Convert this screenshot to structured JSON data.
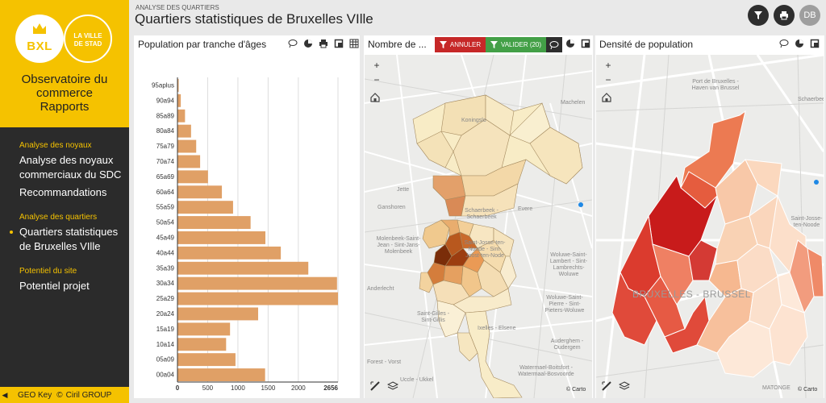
{
  "sidebar": {
    "logo_text": "BXL",
    "logo2_lines": [
      "LA VILLE",
      "DE STAD"
    ],
    "title_lines": [
      "Observatoire du",
      "commerce",
      "Rapports"
    ],
    "sections": [
      {
        "heading": "Analyse des noyaux",
        "links": [
          "Analyse des noyaux commerciaux du SDC",
          "Recommandations"
        ]
      },
      {
        "heading": "Analyse des quartiers",
        "links": [
          "Quartiers statistiques de Bruxelles VIlle"
        ]
      },
      {
        "heading": "Potentiel du site",
        "links": [
          "Potentiel projet"
        ]
      }
    ],
    "footer": {
      "left": "GEO Key",
      "copy": "©",
      "right": "Ciril GROUP"
    }
  },
  "header": {
    "breadcrumb": "ANALYSE DES QUARTIERS",
    "title": "Quartiers statistiques de Bruxelles VIlle",
    "avatar": "DB"
  },
  "panels": {
    "chart_title": "Population par tranche d'âges",
    "map1_title": "Nombre de ...",
    "btn_annuler": "ANNULER",
    "btn_valider": "VALIDER (20)",
    "map2_title": "Densité de population",
    "carto": "© Carto",
    "zoom_in": "+",
    "zoom_out": "−"
  },
  "map1_labels": [
    "Koningslo",
    "Machelen",
    "Jette",
    "Ganshoren",
    "Schaerbeek - Schaerbeek",
    "Evere",
    "Molenbeek-Saint-Jean - Sint-Jans-Molenbeek",
    "Saint-Josse-ten-Noode - Sint-Joost-ten-Node",
    "Woluwe-Saint-Lambert - Sint-Lambrechts-Woluwe",
    "Anderlecht",
    "Saint-Gilles - Sint-Gillis",
    "Ixelles - Elsene",
    "Woluwe-Saint-Pierre - Sint-Pieters-Woluwe",
    "Forest - Vorst",
    "Auderghem - Oudergem",
    "Uccle - Ukkel",
    "Watermael-Boitsfort - Watermaal-Bosvoorde"
  ],
  "map2_labels": [
    "Port de Bruxelles - Haven van Brussel",
    "Schaerbeek",
    "Saint-Josse-ten-Noode",
    "BRUXELLES - BRUSSEL",
    "MATONGE"
  ],
  "colors": {
    "accent": "#f5c200",
    "sidebar_bg": "#2b2b2b",
    "bar": "#e0a066",
    "annuler": "#c62828",
    "valider": "#43a047"
  },
  "chart_data": {
    "type": "bar",
    "orientation": "horizontal",
    "title": "Population par tranche d'âges",
    "categories": [
      "95aplus",
      "90a94",
      "85a89",
      "80a84",
      "75a79",
      "70a74",
      "65a69",
      "60a64",
      "55a59",
      "50a54",
      "45a49",
      "40a44",
      "35a39",
      "30a34",
      "25a29",
      "20a24",
      "15a19",
      "10a14",
      "05a09",
      "00a04"
    ],
    "values": [
      20,
      55,
      125,
      225,
      310,
      375,
      505,
      735,
      920,
      1210,
      1455,
      1710,
      2165,
      2640,
      2656,
      1335,
      870,
      805,
      960,
      1450
    ],
    "xlim": [
      0,
      2656
    ],
    "xticks": [
      0,
      500,
      1000,
      1500,
      2000,
      2656
    ],
    "grid": true
  }
}
